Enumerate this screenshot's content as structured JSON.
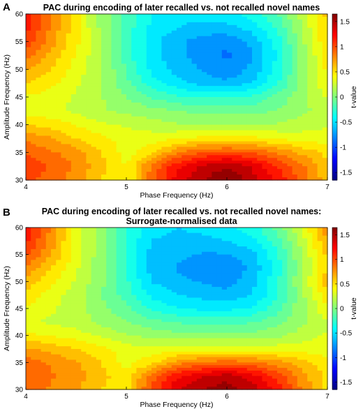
{
  "chart_data": [
    {
      "panel": "A",
      "type": "heatmap",
      "title": "PAC during encoding of later recalled vs. not recalled novel names",
      "xlabel": "Phase Frequency (Hz)",
      "ylabel": "Amplitude Frequency (Hz)",
      "colorbar_label": "t-value",
      "xlim": [
        4,
        7
      ],
      "ylim": [
        30,
        60
      ],
      "clim": [
        -1.65,
        1.65
      ],
      "colormap": "jet",
      "xticks": [
        "4",
        "5",
        "6",
        "7"
      ],
      "yticks": [
        "30",
        "35",
        "40",
        "45",
        "50",
        "55",
        "60"
      ],
      "cticks": [
        "-1.5",
        "-1",
        "-0.5",
        "0",
        "0.5",
        "1",
        "1.5"
      ],
      "x": [
        4.0,
        4.25,
        4.5,
        4.75,
        5.0,
        5.25,
        5.5,
        5.75,
        6.0,
        6.25,
        6.5,
        6.75,
        7.0
      ],
      "y": [
        30,
        32.5,
        35,
        37.5,
        40,
        42.5,
        45,
        47.5,
        50,
        52.5,
        55,
        57.5,
        60
      ],
      "z": [
        [
          1.0,
          0.9,
          0.75,
          0.55,
          0.4,
          0.9,
          1.3,
          1.5,
          1.65,
          1.45,
          1.2,
          0.9,
          0.6
        ],
        [
          1.05,
          0.95,
          0.8,
          0.6,
          0.4,
          0.85,
          1.2,
          1.4,
          1.5,
          1.35,
          1.1,
          0.85,
          0.6
        ],
        [
          0.95,
          0.85,
          0.75,
          0.55,
          0.35,
          0.5,
          0.8,
          0.95,
          1.0,
          0.95,
          0.8,
          0.65,
          0.5
        ],
        [
          0.8,
          0.7,
          0.55,
          0.45,
          0.35,
          0.35,
          0.4,
          0.45,
          0.45,
          0.45,
          0.4,
          0.35,
          0.35
        ],
        [
          0.55,
          0.5,
          0.4,
          0.3,
          0.25,
          0.2,
          0.15,
          0.15,
          0.15,
          0.15,
          0.15,
          0.2,
          0.25
        ],
        [
          0.35,
          0.3,
          0.25,
          0.15,
          0.1,
          0.05,
          0.0,
          -0.05,
          -0.05,
          -0.05,
          0.0,
          0.1,
          0.2
        ],
        [
          0.4,
          0.35,
          0.25,
          0.15,
          0.0,
          -0.15,
          -0.25,
          -0.3,
          -0.3,
          -0.25,
          -0.1,
          0.1,
          0.3
        ],
        [
          0.55,
          0.45,
          0.3,
          0.15,
          -0.1,
          -0.35,
          -0.5,
          -0.6,
          -0.65,
          -0.55,
          -0.3,
          0.05,
          0.4
        ],
        [
          0.7,
          0.55,
          0.35,
          0.15,
          -0.15,
          -0.45,
          -0.6,
          -0.7,
          -0.8,
          -0.65,
          -0.35,
          0.05,
          0.45
        ],
        [
          0.9,
          0.65,
          0.4,
          0.15,
          -0.2,
          -0.5,
          -0.65,
          -0.75,
          -0.85,
          -0.7,
          -0.4,
          0.05,
          0.5
        ],
        [
          1.05,
          0.75,
          0.45,
          0.15,
          -0.2,
          -0.5,
          -0.65,
          -0.75,
          -0.8,
          -0.65,
          -0.35,
          0.1,
          0.55
        ],
        [
          1.15,
          0.8,
          0.45,
          0.1,
          -0.2,
          -0.45,
          -0.55,
          -0.6,
          -0.6,
          -0.5,
          -0.25,
          0.15,
          0.55
        ],
        [
          1.2,
          0.8,
          0.45,
          0.1,
          -0.2,
          -0.4,
          -0.5,
          -0.5,
          -0.45,
          -0.35,
          -0.15,
          0.2,
          0.6
        ]
      ]
    },
    {
      "panel": "B",
      "type": "heatmap",
      "title": "PAC during encoding of later recalled vs. not recalled novel names:",
      "subtitle": "Surrogate-normalised data",
      "xlabel": "Phase Frequency (Hz)",
      "ylabel": "Amplitude Frequency (Hz)",
      "colorbar_label": "t-value",
      "xlim": [
        4,
        7
      ],
      "ylim": [
        30,
        60
      ],
      "clim": [
        -1.65,
        1.65
      ],
      "colormap": "jet",
      "xticks": [
        "4",
        "5",
        "6",
        "7"
      ],
      "yticks": [
        "30",
        "35",
        "40",
        "45",
        "50",
        "55",
        "60"
      ],
      "cticks": [
        "-1.5",
        "-1",
        "-0.5",
        "0",
        "0.5",
        "1",
        "1.5"
      ],
      "x": [
        4.0,
        4.25,
        4.5,
        4.75,
        5.0,
        5.25,
        5.5,
        5.75,
        6.0,
        6.25,
        6.5,
        6.75,
        7.0
      ],
      "y": [
        30,
        32.5,
        35,
        37.5,
        40,
        42.5,
        45,
        47.5,
        50,
        52.5,
        55,
        57.5,
        60
      ],
      "z": [
        [
          0.9,
          0.8,
          0.7,
          0.55,
          0.45,
          1.0,
          1.35,
          1.5,
          1.6,
          1.45,
          1.2,
          0.8,
          0.5
        ],
        [
          0.95,
          0.85,
          0.75,
          0.6,
          0.45,
          0.9,
          1.2,
          1.35,
          1.45,
          1.3,
          1.05,
          0.75,
          0.5
        ],
        [
          0.9,
          0.8,
          0.7,
          0.55,
          0.35,
          0.5,
          0.75,
          0.85,
          0.9,
          0.85,
          0.75,
          0.6,
          0.45
        ],
        [
          0.7,
          0.65,
          0.55,
          0.45,
          0.35,
          0.3,
          0.35,
          0.35,
          0.35,
          0.35,
          0.35,
          0.35,
          0.35
        ],
        [
          0.45,
          0.4,
          0.35,
          0.25,
          0.15,
          0.1,
          0.05,
          0.05,
          0.05,
          0.05,
          0.1,
          0.2,
          0.3
        ],
        [
          0.3,
          0.25,
          0.2,
          0.1,
          0.0,
          -0.1,
          -0.15,
          -0.2,
          -0.2,
          -0.15,
          -0.05,
          0.1,
          0.25
        ],
        [
          0.4,
          0.3,
          0.2,
          0.05,
          -0.1,
          -0.3,
          -0.4,
          -0.45,
          -0.45,
          -0.4,
          -0.2,
          0.1,
          0.4
        ],
        [
          0.5,
          0.35,
          0.2,
          0.0,
          -0.2,
          -0.45,
          -0.55,
          -0.6,
          -0.65,
          -0.55,
          -0.3,
          0.1,
          0.5
        ],
        [
          0.65,
          0.45,
          0.25,
          0.05,
          -0.25,
          -0.55,
          -0.65,
          -0.7,
          -0.75,
          -0.6,
          -0.3,
          0.15,
          0.65
        ],
        [
          0.8,
          0.55,
          0.3,
          0.05,
          -0.3,
          -0.6,
          -0.7,
          -0.75,
          -0.8,
          -0.65,
          -0.35,
          0.1,
          0.55
        ],
        [
          1.0,
          0.7,
          0.35,
          0.05,
          -0.3,
          -0.6,
          -0.65,
          -0.7,
          -0.7,
          -0.6,
          -0.3,
          0.15,
          0.6
        ],
        [
          1.15,
          0.75,
          0.35,
          0.05,
          -0.3,
          -0.55,
          -0.6,
          -0.6,
          -0.55,
          -0.45,
          -0.2,
          0.2,
          0.7
        ],
        [
          1.2,
          0.8,
          0.35,
          0.05,
          -0.25,
          -0.5,
          -0.55,
          -0.5,
          -0.45,
          -0.35,
          -0.1,
          0.3,
          0.8
        ]
      ]
    }
  ]
}
